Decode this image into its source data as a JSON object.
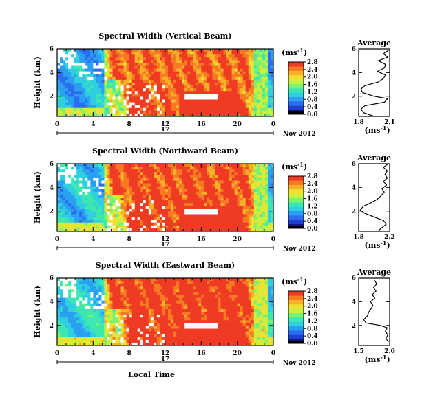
{
  "chart_data": {
    "type": "heatmap",
    "x_axis_label": "Local Time",
    "date_day": "17",
    "date_month_year": "Nov 2012",
    "panels": [
      {
        "title": "Spectral Width (Vertical Beam)",
        "ylabel": "Height (km)",
        "x_ticks": [
          "0",
          "4",
          "8",
          "12",
          "16",
          "20",
          "0"
        ],
        "y_ticks": [
          "2",
          "4",
          "6"
        ],
        "xlim": [
          0,
          24
        ],
        "ylim": [
          0.3,
          6.0
        ],
        "colorbar_unit": "(ms",
        "colorbar_exp": "-1",
        "colorbar_ticks": [
          "0.0",
          "0.4",
          "0.8",
          "1.2",
          "1.6",
          "2.0",
          "2.4",
          "2.8"
        ],
        "avg_title": "Average",
        "avg_xlabel": "(ms",
        "avg_xlabel_exp": "-1",
        "avg_xticks": [
          "1.8",
          "2.1"
        ],
        "avg_xlim": [
          1.8,
          2.1
        ],
        "avg_yticks": [
          "2",
          "4",
          "6"
        ],
        "avg_profile": [
          [
            1.95,
            0.3
          ],
          [
            1.85,
            0.6
          ],
          [
            1.82,
            0.9
          ],
          [
            1.86,
            1.2
          ],
          [
            2.05,
            1.5
          ],
          [
            2.08,
            1.8
          ],
          [
            1.95,
            2.0
          ],
          [
            1.84,
            2.3
          ],
          [
            1.82,
            2.6
          ],
          [
            1.86,
            2.9
          ],
          [
            1.99,
            3.2
          ],
          [
            2.04,
            3.5
          ],
          [
            2.06,
            3.8
          ],
          [
            1.98,
            4.1
          ],
          [
            2.05,
            4.4
          ],
          [
            2.06,
            4.7
          ],
          [
            1.99,
            5.0
          ],
          [
            2.08,
            5.3
          ],
          [
            2.04,
            5.6
          ],
          [
            2.09,
            5.9
          ]
        ]
      },
      {
        "title": "Spectral Width (Northward Beam)",
        "ylabel": "Height (km)",
        "x_ticks": [
          "0",
          "4",
          "8",
          "12",
          "16",
          "20",
          "0"
        ],
        "y_ticks": [
          "2",
          "4",
          "6"
        ],
        "xlim": [
          0,
          24
        ],
        "ylim": [
          0.3,
          6.0
        ],
        "colorbar_unit": "(ms",
        "colorbar_exp": "-1",
        "colorbar_ticks": [
          "0.0",
          "0.4",
          "0.8",
          "1.2",
          "1.6",
          "2.0",
          "2.4",
          "2.8"
        ],
        "avg_title": "Average",
        "avg_xlabel": "(ms",
        "avg_xlabel_exp": "-1",
        "avg_xticks": [
          "1.8",
          "2.2"
        ],
        "avg_xlim": [
          1.8,
          2.2
        ],
        "avg_yticks": [
          "2",
          "4",
          "6"
        ],
        "avg_profile": [
          [
            2.05,
            0.3
          ],
          [
            2.1,
            0.6
          ],
          [
            2.16,
            0.9
          ],
          [
            2.12,
            1.2
          ],
          [
            2.0,
            1.5
          ],
          [
            1.88,
            1.8
          ],
          [
            1.82,
            2.1
          ],
          [
            1.86,
            2.4
          ],
          [
            1.96,
            2.7
          ],
          [
            2.04,
            3.0
          ],
          [
            2.09,
            3.3
          ],
          [
            2.13,
            3.6
          ],
          [
            2.1,
            3.9
          ],
          [
            2.16,
            4.2
          ],
          [
            2.12,
            4.5
          ],
          [
            2.17,
            4.8
          ],
          [
            2.14,
            5.1
          ],
          [
            2.17,
            5.4
          ],
          [
            2.12,
            5.7
          ],
          [
            2.18,
            6.0
          ]
        ]
      },
      {
        "title": "Spectral Width (Eastward Beam)",
        "ylabel": "Height (km)",
        "x_ticks": [
          "0",
          "4",
          "8",
          "12",
          "16",
          "20",
          "0"
        ],
        "y_ticks": [
          "2",
          "4",
          "6"
        ],
        "xlim": [
          0,
          24
        ],
        "ylim": [
          0.3,
          6.0
        ],
        "colorbar_unit": "(ms",
        "colorbar_exp": "-1",
        "colorbar_ticks": [
          "0.0",
          "0.4",
          "0.8",
          "1.2",
          "1.6",
          "2.0",
          "2.4",
          "2.8"
        ],
        "avg_title": "Average",
        "avg_xlabel": "(ms",
        "avg_xlabel_exp": "-1",
        "avg_xticks": [
          "1.5",
          "2.0"
        ],
        "avg_xlim": [
          1.5,
          2.0
        ],
        "avg_yticks": [
          "2",
          "4",
          "6"
        ],
        "avg_profile": [
          [
            1.98,
            0.6
          ],
          [
            1.94,
            0.9
          ],
          [
            1.97,
            1.2
          ],
          [
            1.93,
            1.5
          ],
          [
            1.96,
            1.8
          ],
          [
            1.85,
            2.0
          ],
          [
            1.62,
            2.2
          ],
          [
            1.58,
            2.5
          ],
          [
            1.64,
            2.8
          ],
          [
            1.66,
            3.1
          ],
          [
            1.7,
            3.4
          ],
          [
            1.73,
            3.7
          ],
          [
            1.69,
            4.0
          ],
          [
            1.76,
            4.3
          ],
          [
            1.72,
            4.6
          ],
          [
            1.78,
            4.9
          ],
          [
            1.74,
            5.2
          ],
          [
            1.79,
            5.5
          ],
          [
            1.76,
            5.8
          ]
        ]
      }
    ],
    "colormap": [
      "#16167a",
      "#1f3fd0",
      "#2d6cf0",
      "#2aa0f0",
      "#30cfe0",
      "#3ce8b0",
      "#7cf070",
      "#c8f040",
      "#f0e030",
      "#f7b028",
      "#f57a22",
      "#ef3b24"
    ]
  }
}
